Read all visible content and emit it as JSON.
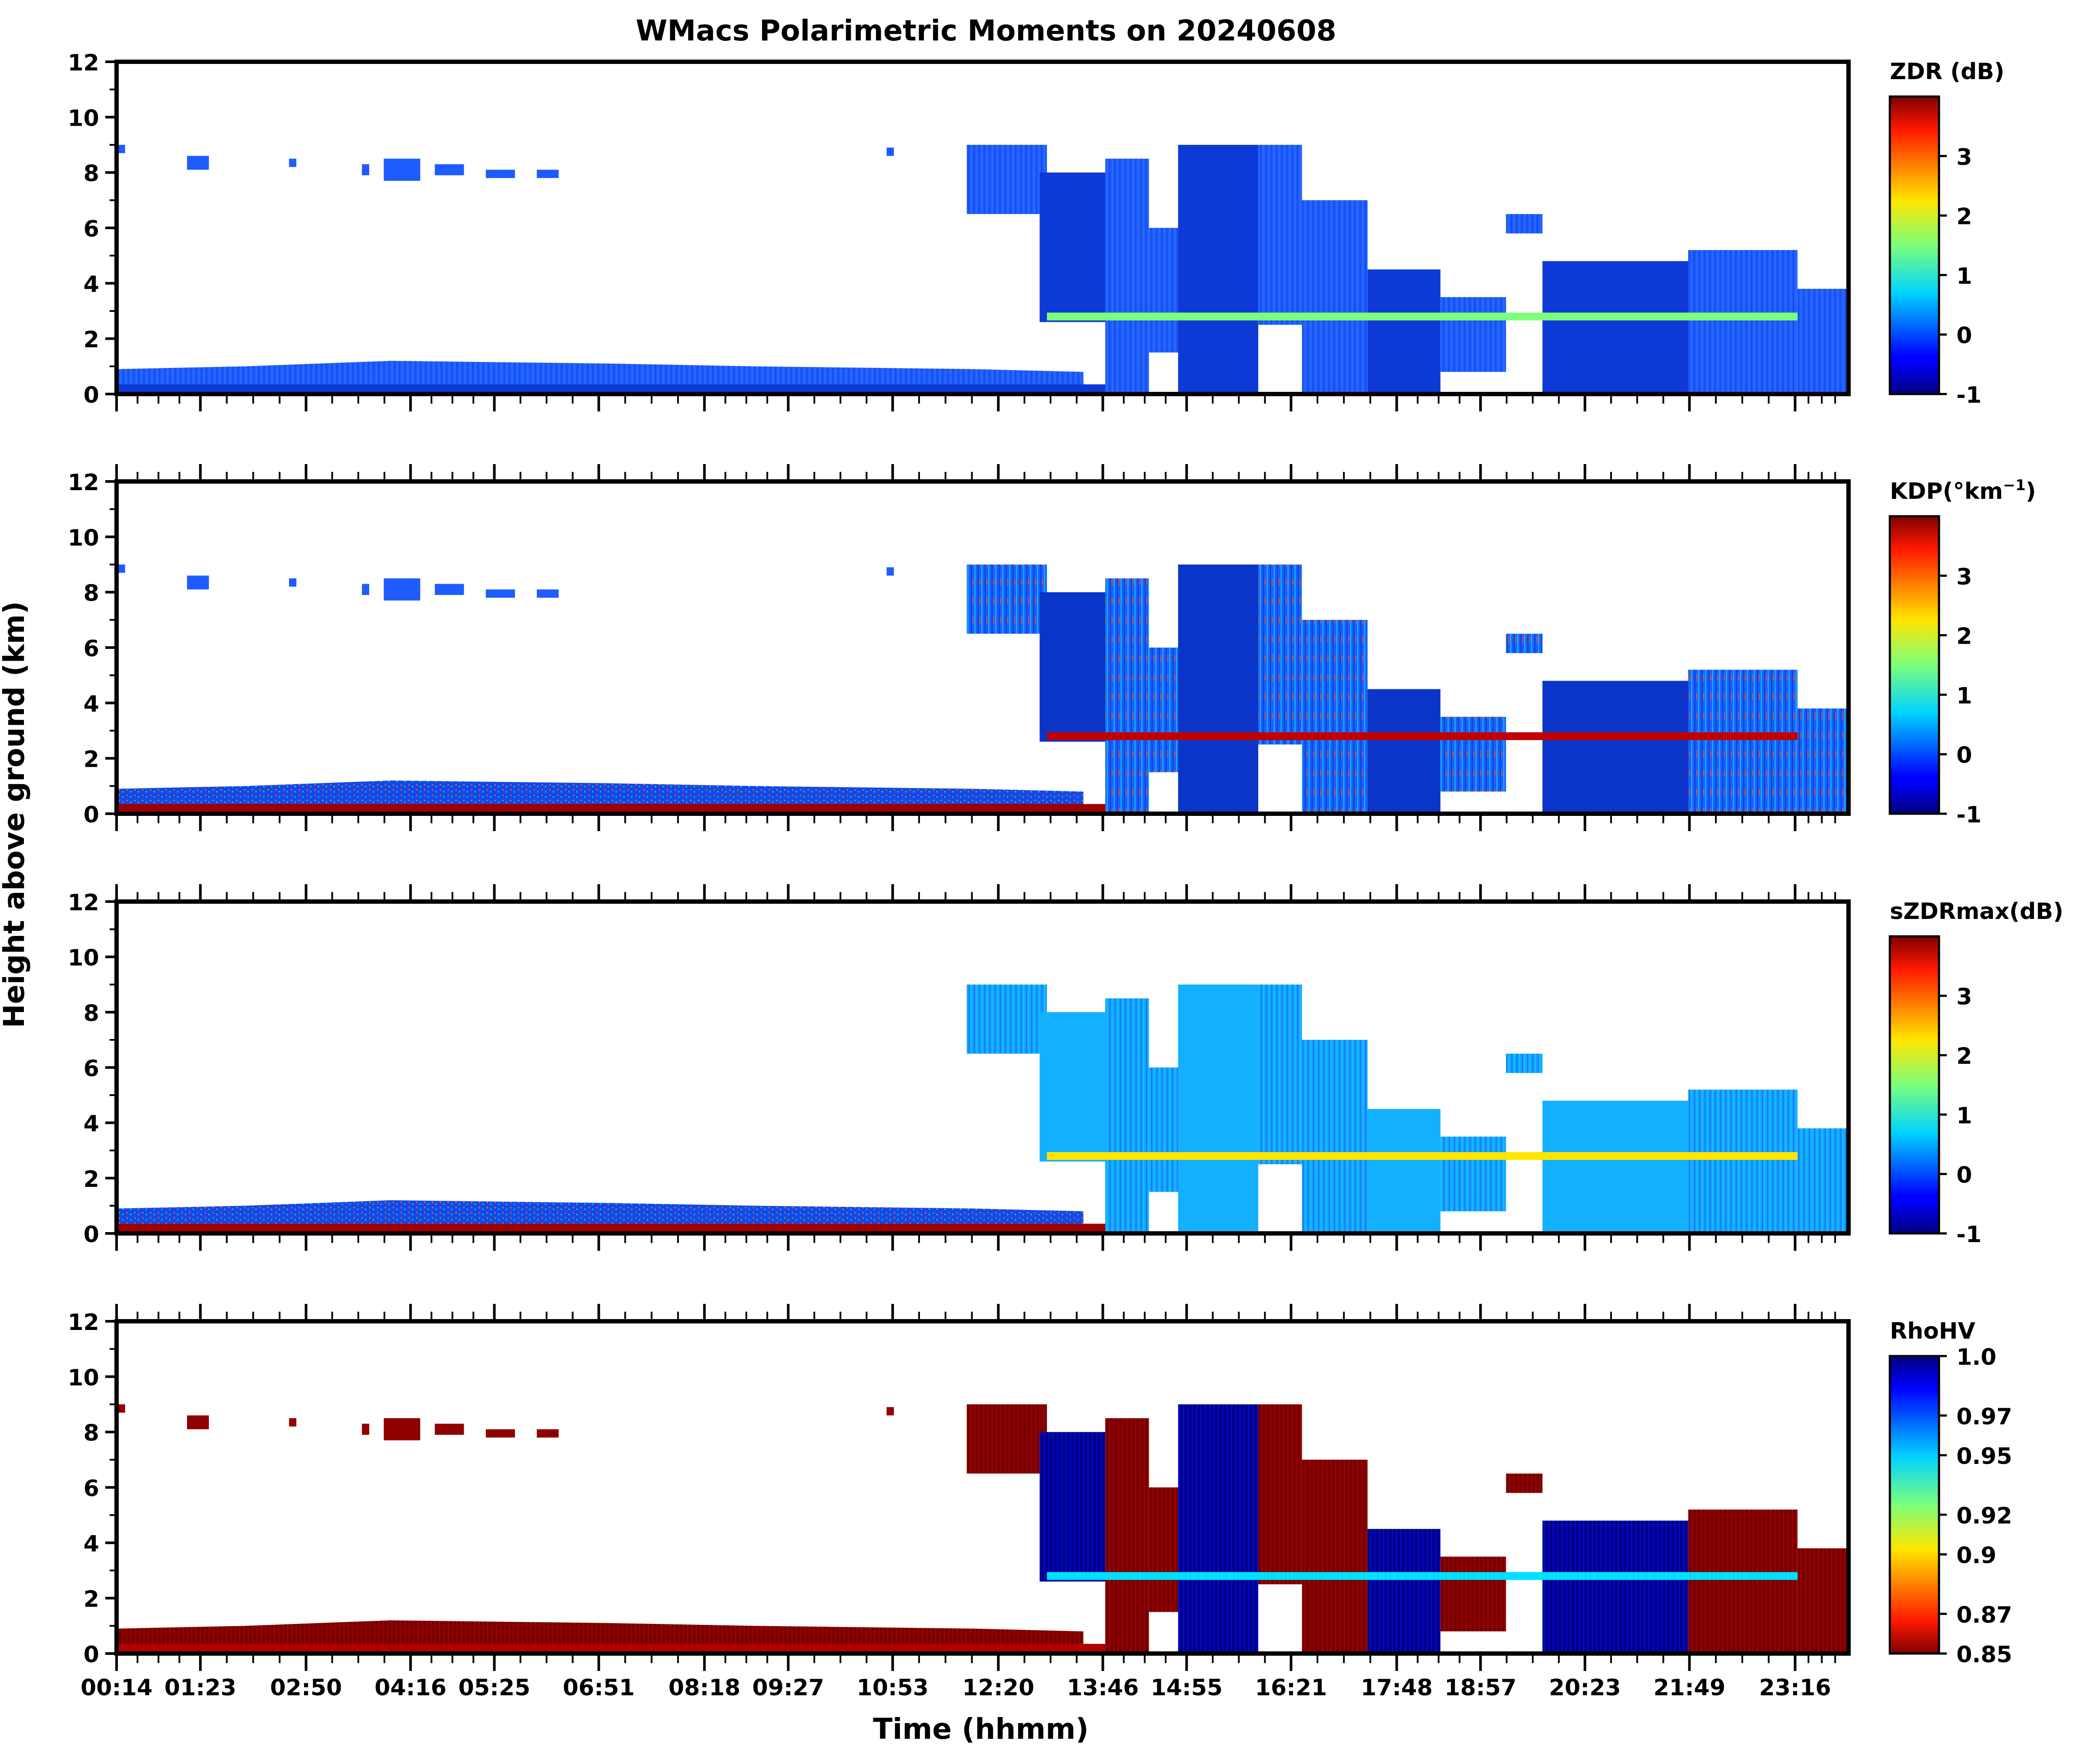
{
  "figure": {
    "title": "WMacs Polarimetric Moments on 20240608",
    "xlabel": "Time (hhmm)",
    "ylabel": "Height above ground (km)"
  },
  "chart_data": [
    {
      "type": "heatmap",
      "name": "ZDR",
      "colorbar_label": "ZDR (dB)",
      "colorbar_range": [
        -1,
        4
      ],
      "colorbar_ticks": [
        -1,
        0,
        1,
        2,
        3
      ],
      "colorbar_tick_labels": [
        "-1",
        "0",
        "1",
        "2",
        "3"
      ],
      "xlim_hours": [
        0.233,
        24.0
      ],
      "ylim": [
        0,
        12
      ],
      "y_ticks": [
        0,
        2,
        4,
        6,
        8,
        10,
        12
      ],
      "x_tick_hours": [
        0.233,
        1.383,
        2.833,
        4.267,
        5.417,
        6.85,
        8.3,
        9.45,
        10.883,
        12.333,
        13.767,
        14.917,
        16.35,
        17.8,
        18.95,
        20.383,
        21.817,
        23.267
      ],
      "x_tick_labels": [
        "00:14",
        "01:23",
        "02:50",
        "04:16",
        "05:25",
        "06:51",
        "08:18",
        "09:27",
        "10:53",
        "12:20",
        "13:46",
        "14:55",
        "16:21",
        "17:48",
        "18:57",
        "20:23",
        "21:49",
        "23:16"
      ]
    },
    {
      "type": "heatmap",
      "name": "KDP",
      "colorbar_label": "KDP(°km",
      "colorbar_label_sup": "−1",
      "colorbar_label_end": ")",
      "colorbar_range": [
        -1,
        4
      ],
      "colorbar_ticks": [
        -1,
        0,
        1,
        2,
        3
      ],
      "colorbar_tick_labels": [
        "-1",
        "0",
        "1",
        "2",
        "3"
      ],
      "xlim_hours": [
        0.233,
        24.0
      ],
      "ylim": [
        0,
        12
      ],
      "y_ticks": [
        0,
        2,
        4,
        6,
        8,
        10,
        12
      ],
      "x_tick_hours": [
        0.233,
        1.383,
        2.833,
        4.267,
        5.417,
        6.85,
        8.3,
        9.45,
        10.883,
        12.333,
        13.767,
        14.917,
        16.35,
        17.8,
        18.95,
        20.383,
        21.817,
        23.267
      ],
      "x_tick_labels": [
        "00:14",
        "01:23",
        "02:50",
        "04:16",
        "05:25",
        "06:51",
        "08:18",
        "09:27",
        "10:53",
        "12:20",
        "13:46",
        "14:55",
        "16:21",
        "17:48",
        "18:57",
        "20:23",
        "21:49",
        "23:16"
      ]
    },
    {
      "type": "heatmap",
      "name": "sZDRmax",
      "colorbar_label": "sZDRmax(dB)",
      "colorbar_range": [
        -1,
        4
      ],
      "colorbar_ticks": [
        -1,
        0,
        1,
        2,
        3
      ],
      "colorbar_tick_labels": [
        "-1",
        "0",
        "1",
        "2",
        "3"
      ],
      "xlim_hours": [
        0.233,
        24.0
      ],
      "ylim": [
        0,
        12
      ],
      "y_ticks": [
        0,
        2,
        4,
        6,
        8,
        10,
        12
      ],
      "x_tick_hours": [
        0.233,
        1.383,
        2.833,
        4.267,
        5.417,
        6.85,
        8.3,
        9.45,
        10.883,
        12.333,
        13.767,
        14.917,
        16.35,
        17.8,
        18.95,
        20.383,
        21.817,
        23.267
      ],
      "x_tick_labels": [
        "00:14",
        "01:23",
        "02:50",
        "04:16",
        "05:25",
        "06:51",
        "08:18",
        "09:27",
        "10:53",
        "12:20",
        "13:46",
        "14:55",
        "16:21",
        "17:48",
        "18:57",
        "20:23",
        "21:49",
        "23:16"
      ]
    },
    {
      "type": "heatmap",
      "name": "RhoHV",
      "colorbar_label": "RhoHV",
      "colorbar_range": [
        0.85,
        1.0
      ],
      "colorbar_ticks": [
        0.85,
        0.87,
        0.9,
        0.92,
        0.95,
        0.97,
        1.0
      ],
      "colorbar_tick_labels": [
        "0.85",
        "0.87",
        "0.9",
        "0.92",
        "0.95",
        "0.97",
        "1.0"
      ],
      "xlim_hours": [
        0.233,
        24.0
      ],
      "ylim": [
        0,
        12
      ],
      "y_ticks": [
        0,
        2,
        4,
        6,
        8,
        10,
        12
      ],
      "x_tick_hours": [
        0.233,
        1.383,
        2.833,
        4.267,
        5.417,
        6.85,
        8.3,
        9.45,
        10.883,
        12.333,
        13.767,
        14.917,
        16.35,
        17.8,
        18.95,
        20.383,
        21.817,
        23.267
      ],
      "x_tick_labels": [
        "00:14",
        "01:23",
        "02:50",
        "04:16",
        "05:25",
        "06:51",
        "08:18",
        "09:27",
        "10:53",
        "12:20",
        "13:46",
        "14:55",
        "16:21",
        "17:48",
        "18:57",
        "20:23",
        "21:49",
        "23:16"
      ]
    }
  ],
  "echo_regions": {
    "boundary_layer_top_km": [
      [
        0.233,
        0.9
      ],
      [
        2.0,
        1.0
      ],
      [
        4.0,
        1.2
      ],
      [
        7.0,
        1.1
      ],
      [
        9.0,
        1.0
      ],
      [
        12.0,
        0.9
      ],
      [
        13.5,
        0.8
      ]
    ],
    "cirrus_patches": [
      [
        1.2,
        1.5,
        8.1,
        8.6
      ],
      [
        2.6,
        2.7,
        8.2,
        8.5
      ],
      [
        3.6,
        3.7,
        7.9,
        8.3
      ],
      [
        3.9,
        4.4,
        7.7,
        8.5
      ],
      [
        4.6,
        5.0,
        7.9,
        8.3
      ],
      [
        5.3,
        5.7,
        7.8,
        8.1
      ],
      [
        6.0,
        6.3,
        7.8,
        8.1
      ],
      [
        0.25,
        0.35,
        8.7,
        9.0
      ],
      [
        10.8,
        10.9,
        8.6,
        8.9
      ]
    ],
    "storm_blocks": [
      [
        11.9,
        13.0,
        6.5,
        9.0
      ],
      [
        12.9,
        13.8,
        2.6,
        8.0
      ],
      [
        13.8,
        14.4,
        0.0,
        8.5
      ],
      [
        14.4,
        14.8,
        1.5,
        6.0
      ],
      [
        14.8,
        15.9,
        0.0,
        9.0
      ],
      [
        15.9,
        16.5,
        2.5,
        9.0
      ],
      [
        16.5,
        17.4,
        0.0,
        7.0
      ],
      [
        17.4,
        18.4,
        0.0,
        4.5
      ],
      [
        18.4,
        19.3,
        0.8,
        3.5
      ],
      [
        19.3,
        19.8,
        5.8,
        6.5
      ],
      [
        19.8,
        21.8,
        0.0,
        4.8
      ],
      [
        21.8,
        23.3,
        0.0,
        5.2
      ],
      [
        23.3,
        24.0,
        0.0,
        3.8
      ]
    ],
    "melting_layer_km": 2.8,
    "melting_layer_hours": [
      13.0,
      23.3
    ]
  }
}
